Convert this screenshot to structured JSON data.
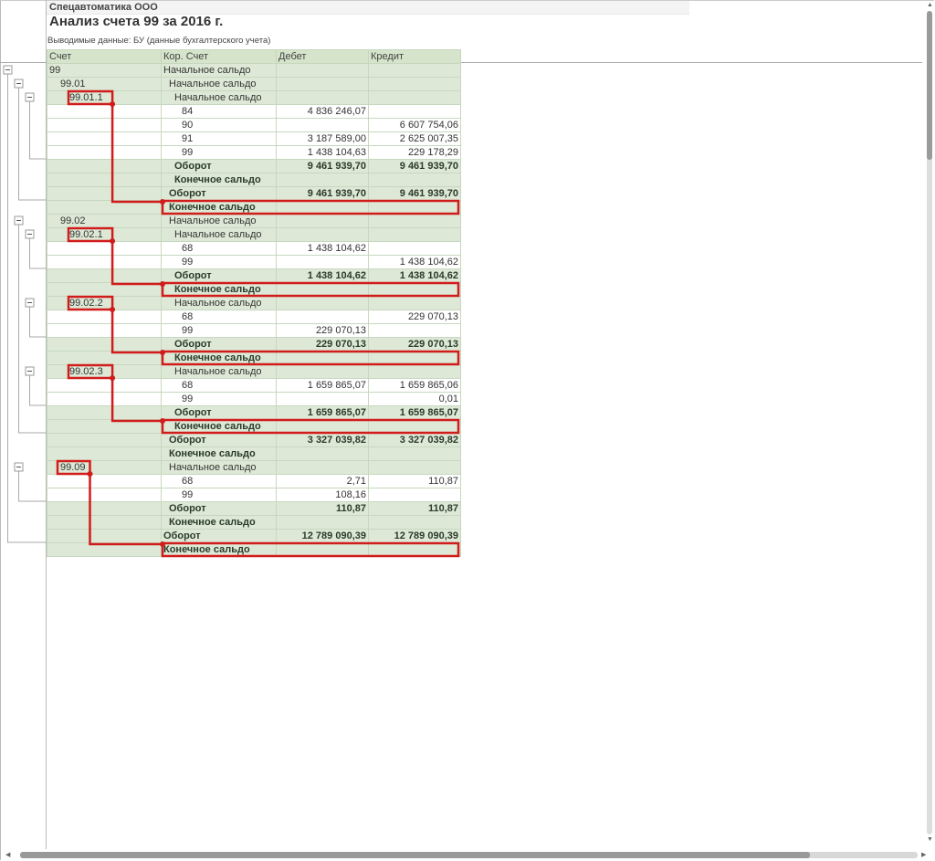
{
  "header": {
    "company": "Спецавтоматика ООО",
    "title": "Анализ счета 99 за 2016 г.",
    "subtitle": "Выводимые данные:  БУ (данные бухгалтерского учета)"
  },
  "table": {
    "columns": [
      "Счет",
      "Кор. Счет",
      "Дебет",
      "Кредит"
    ],
    "rows": [
      {
        "account": "99",
        "corr": "Начальное сальдо",
        "debit": "",
        "credit": "",
        "level": 0,
        "kind": "open"
      },
      {
        "account": "99.01",
        "corr": "Начальное сальдо",
        "debit": "",
        "credit": "",
        "level": 1,
        "kind": "open"
      },
      {
        "account": "99.01.1",
        "corr": "Начальное сальдо",
        "debit": "",
        "credit": "",
        "level": 2,
        "kind": "open",
        "highlight": true
      },
      {
        "account": "",
        "corr": "84",
        "debit": "4 836 246,07",
        "credit": "",
        "level": 2,
        "kind": "detail"
      },
      {
        "account": "",
        "corr": "90",
        "debit": "",
        "credit": "6 607 754,06",
        "level": 2,
        "kind": "detail"
      },
      {
        "account": "",
        "corr": "91",
        "debit": "3 187 589,00",
        "credit": "2 625 007,35",
        "level": 2,
        "kind": "detail"
      },
      {
        "account": "",
        "corr": "99",
        "debit": "1 438 104,63",
        "credit": "229 178,29",
        "level": 2,
        "kind": "detail"
      },
      {
        "account": "",
        "corr": "Оборот",
        "debit": "9 461 939,70",
        "credit": "9 461 939,70",
        "level": 2,
        "kind": "total"
      },
      {
        "account": "",
        "corr": "Конечное сальдо",
        "debit": "",
        "credit": "",
        "level": 2,
        "kind": "total"
      },
      {
        "account": "",
        "corr": "Оборот",
        "debit": "9 461 939,70",
        "credit": "9 461 939,70",
        "level": 1,
        "kind": "total"
      },
      {
        "account": "",
        "corr": "Конечное сальдо",
        "debit": "",
        "credit": "",
        "level": 1,
        "kind": "total",
        "highlight": true
      },
      {
        "account": "99.02",
        "corr": "Начальное сальдо",
        "debit": "",
        "credit": "",
        "level": 1,
        "kind": "open"
      },
      {
        "account": "99.02.1",
        "corr": "Начальное сальдо",
        "debit": "",
        "credit": "",
        "level": 2,
        "kind": "open",
        "highlight": true
      },
      {
        "account": "",
        "corr": "68",
        "debit": "1 438 104,62",
        "credit": "",
        "level": 2,
        "kind": "detail"
      },
      {
        "account": "",
        "corr": "99",
        "debit": "",
        "credit": "1 438 104,62",
        "level": 2,
        "kind": "detail"
      },
      {
        "account": "",
        "corr": "Оборот",
        "debit": "1 438 104,62",
        "credit": "1 438 104,62",
        "level": 2,
        "kind": "total"
      },
      {
        "account": "",
        "corr": "Конечное сальдо",
        "debit": "",
        "credit": "",
        "level": 2,
        "kind": "total",
        "highlight": true
      },
      {
        "account": "99.02.2",
        "corr": "Начальное сальдо",
        "debit": "",
        "credit": "",
        "level": 2,
        "kind": "open",
        "highlight": true
      },
      {
        "account": "",
        "corr": "68",
        "debit": "",
        "credit": "229 070,13",
        "level": 2,
        "kind": "detail"
      },
      {
        "account": "",
        "corr": "99",
        "debit": "229 070,13",
        "credit": "",
        "level": 2,
        "kind": "detail"
      },
      {
        "account": "",
        "corr": "Оборот",
        "debit": "229 070,13",
        "credit": "229 070,13",
        "level": 2,
        "kind": "total"
      },
      {
        "account": "",
        "corr": "Конечное сальдо",
        "debit": "",
        "credit": "",
        "level": 2,
        "kind": "total",
        "highlight": true
      },
      {
        "account": "99.02.3",
        "corr": "Начальное сальдо",
        "debit": "",
        "credit": "",
        "level": 2,
        "kind": "open",
        "highlight": true
      },
      {
        "account": "",
        "corr": "68",
        "debit": "1 659 865,07",
        "credit": "1 659 865,06",
        "level": 2,
        "kind": "detail"
      },
      {
        "account": "",
        "corr": "99",
        "debit": "",
        "credit": "0,01",
        "level": 2,
        "kind": "detail"
      },
      {
        "account": "",
        "corr": "Оборот",
        "debit": "1 659 865,07",
        "credit": "1 659 865,07",
        "level": 2,
        "kind": "total"
      },
      {
        "account": "",
        "corr": "Конечное сальдо",
        "debit": "",
        "credit": "",
        "level": 2,
        "kind": "total",
        "highlight": true
      },
      {
        "account": "",
        "corr": "Оборот",
        "debit": "3 327 039,82",
        "credit": "3 327 039,82",
        "level": 1,
        "kind": "total"
      },
      {
        "account": "",
        "corr": "Конечное сальдо",
        "debit": "",
        "credit": "",
        "level": 1,
        "kind": "total"
      },
      {
        "account": "99.09",
        "corr": "Начальное сальдо",
        "debit": "",
        "credit": "",
        "level": 1,
        "kind": "open",
        "highlight": true
      },
      {
        "account": "",
        "corr": "68",
        "debit": "2,71",
        "credit": "110,87",
        "level": 1,
        "kind": "detail"
      },
      {
        "account": "",
        "corr": "99",
        "debit": "108,16",
        "credit": "",
        "level": 1,
        "kind": "detail"
      },
      {
        "account": "",
        "corr": "Оборот",
        "debit": "110,87",
        "credit": "110,87",
        "level": 1,
        "kind": "total"
      },
      {
        "account": "",
        "corr": "Конечное сальдо",
        "debit": "",
        "credit": "",
        "level": 1,
        "kind": "total"
      },
      {
        "account": "",
        "corr": "Оборот",
        "debit": "12 789 090,39",
        "credit": "12 789 090,39",
        "level": 0,
        "kind": "total"
      },
      {
        "account": "",
        "corr": "Конечное сальдо",
        "debit": "",
        "credit": "",
        "level": 0,
        "kind": "total",
        "highlight": true
      }
    ]
  },
  "tree_groups": [
    {
      "name": "99",
      "open_row": 0,
      "last_row": 34
    },
    {
      "name": "99.01",
      "open_row": 1,
      "last_row": 9
    },
    {
      "name": "99.01.1",
      "open_row": 2,
      "last_row": 6
    },
    {
      "name": "99.02",
      "open_row": 11,
      "last_row": 26
    },
    {
      "name": "99.02.1",
      "open_row": 12,
      "last_row": 14
    },
    {
      "name": "99.02.2",
      "open_row": 17,
      "last_row": 19
    },
    {
      "name": "99.02.3",
      "open_row": 22,
      "last_row": 24
    },
    {
      "name": "99.09",
      "open_row": 29,
      "last_row": 31
    }
  ],
  "colors": {
    "highlight": "#d11c1c",
    "row_green": "#dde9d6",
    "header_green": "#d5e4cb"
  }
}
